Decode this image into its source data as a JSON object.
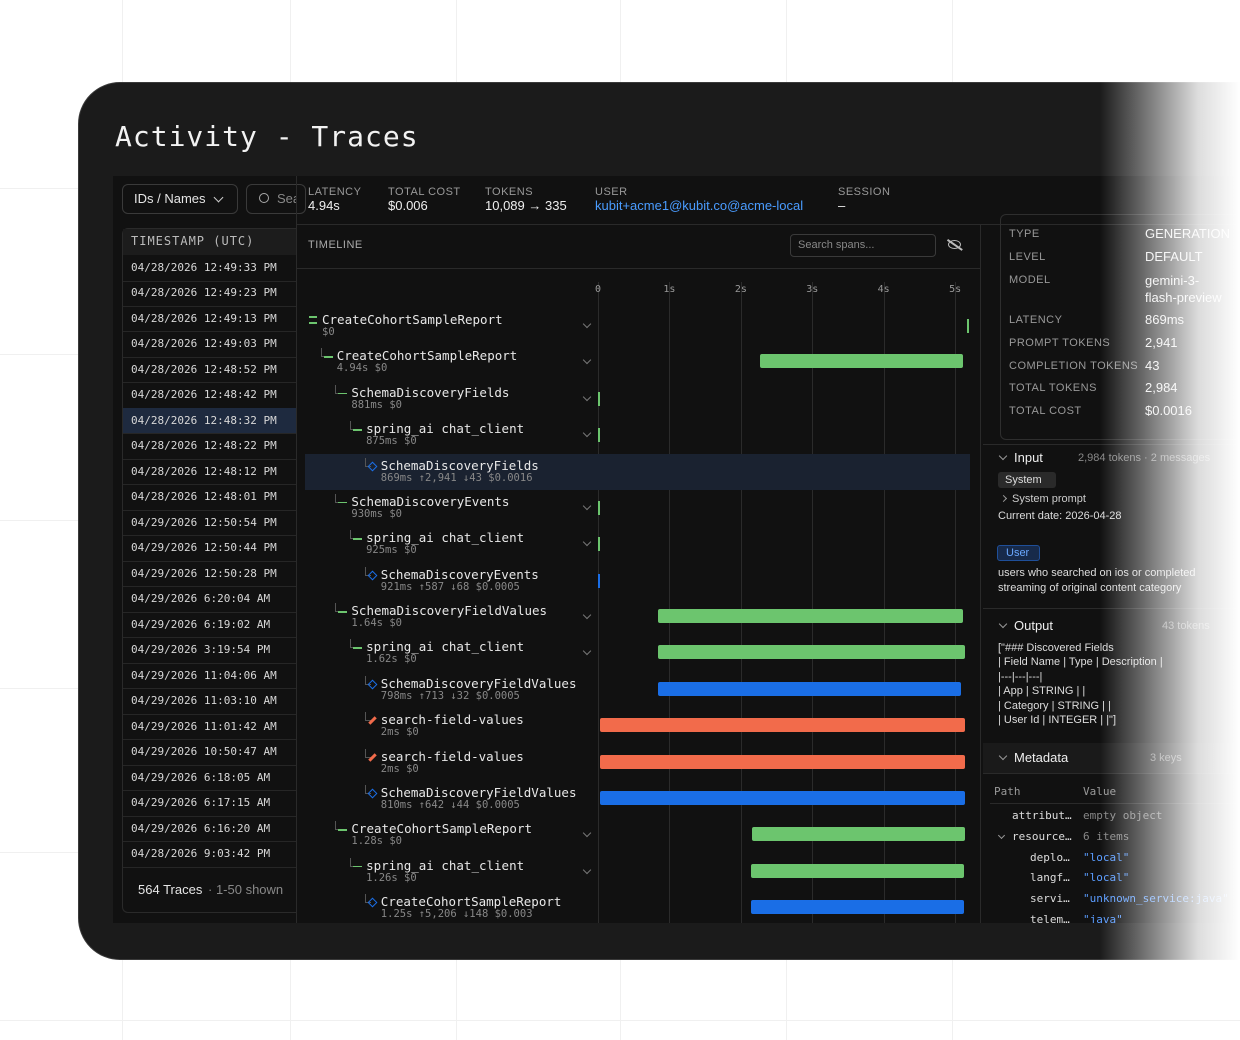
{
  "header": {
    "title": "Activity - Traces"
  },
  "filters": {
    "mode": "IDs / Names",
    "search": "Search"
  },
  "stats": [
    {
      "label": "LATENCY",
      "value": "4.94s"
    },
    {
      "label": "TOTAL COST",
      "value": "$0.006"
    },
    {
      "label": "TOKENS",
      "value": "10,089 → 335"
    },
    {
      "label": "USER",
      "value": "kubit+acme1@kubit.co@acme-local"
    },
    {
      "label": "SESSION",
      "value": "–"
    }
  ],
  "traces": {
    "header": "TIMESTAMP (UTC)",
    "selected": 6,
    "rows": [
      "04/28/2026 12:49:33 PM",
      "04/28/2026 12:49:23 PM",
      "04/28/2026 12:49:13 PM",
      "04/28/2026 12:49:03 PM",
      "04/28/2026 12:48:52 PM",
      "04/28/2026 12:48:42 PM",
      "04/28/2026 12:48:32 PM",
      "04/28/2026 12:48:22 PM",
      "04/28/2026 12:48:12 PM",
      "04/28/2026 12:48:01 PM",
      "04/29/2026 12:50:54 PM",
      "04/29/2026 12:50:44 PM",
      "04/29/2026 12:50:28 PM",
      "04/29/2026 6:20:04 AM",
      "04/29/2026 6:19:02 AM",
      "04/29/2026 3:19:54 PM",
      "04/29/2026 11:04:06 AM",
      "04/29/2026 11:03:10 AM",
      "04/29/2026 11:01:42 AM",
      "04/29/2026 10:50:47 AM",
      "04/29/2026 6:18:05 AM",
      "04/29/2026 6:17:15 AM",
      "04/29/2026 6:16:20 AM",
      "04/28/2026 9:03:42 PM"
    ],
    "count": "564 Traces",
    "shown": "· 1-50 shown"
  },
  "timeline": {
    "label": "TIMELINE",
    "search": "Search spans...",
    "xlim": [
      0,
      5.2
    ],
    "xticks": [
      0,
      {
        "value": 1,
        "label": "1s"
      },
      {
        "value": 2,
        "label": "2s"
      },
      {
        "value": 3,
        "label": "3s"
      },
      {
        "value": 4,
        "label": "4s"
      },
      {
        "value": 5,
        "label": "5s"
      }
    ],
    "colors": {
      "trace": "#6cc56e",
      "span": "#6cc56e",
      "generation": "#1a6ee6",
      "tool": "#f26b4b"
    },
    "selected": 4,
    "spans": [
      {
        "name": "CreateCohortSampleReport",
        "meta": "$0",
        "depth": 0,
        "kind": "trace",
        "start": 5.17,
        "end": 5.18
      },
      {
        "name": "CreateCohortSampleReport",
        "meta": "4.94s $0",
        "depth": 1,
        "kind": "span",
        "start": 2.27,
        "end": 5.11
      },
      {
        "name": "SchemaDiscoveryFields",
        "meta": "881ms $0",
        "depth": 2,
        "kind": "span",
        "start": 0,
        "end": 0.01
      },
      {
        "name": "spring_ai chat_client",
        "meta": "875ms $0",
        "depth": 3,
        "kind": "span",
        "start": 0,
        "end": 0.01
      },
      {
        "name": "SchemaDiscoveryFields",
        "meta": "869ms ↑2,941 ↓43 $0.0016",
        "depth": 4,
        "kind": "generation",
        "start": null,
        "end": null
      },
      {
        "name": "SchemaDiscoveryEvents",
        "meta": "930ms $0",
        "depth": 2,
        "kind": "span",
        "start": 0,
        "end": 0.01
      },
      {
        "name": "spring_ai chat_client",
        "meta": "925ms $0",
        "depth": 3,
        "kind": "span",
        "start": 0,
        "end": 0.01
      },
      {
        "name": "SchemaDiscoveryEvents",
        "meta": "921ms ↑587 ↓68 $0.0005",
        "depth": 4,
        "kind": "generation",
        "start": 0,
        "end": 0.01
      },
      {
        "name": "SchemaDiscoveryFieldValues",
        "meta": "1.64s $0",
        "depth": 2,
        "kind": "span",
        "start": 0.84,
        "end": 5.11
      },
      {
        "name": "spring_ai chat_client",
        "meta": "1.62s $0",
        "depth": 3,
        "kind": "span",
        "start": 0.84,
        "end": 5.14
      },
      {
        "name": "SchemaDiscoveryFieldValues",
        "meta": "798ms ↑713 ↓32 $0.0005",
        "depth": 4,
        "kind": "generation",
        "start": 0.84,
        "end": 5.08
      },
      {
        "name": "search-field-values",
        "meta": "2ms $0",
        "depth": 4,
        "kind": "tool",
        "start": 0.03,
        "end": 5.14
      },
      {
        "name": "search-field-values",
        "meta": "2ms $0",
        "depth": 4,
        "kind": "tool",
        "start": 0.03,
        "end": 5.14
      },
      {
        "name": "SchemaDiscoveryFieldValues",
        "meta": "810ms ↑642 ↓44 $0.0005",
        "depth": 4,
        "kind": "generation",
        "start": 0.03,
        "end": 5.14
      },
      {
        "name": "CreateCohortSampleReport",
        "meta": "1.28s $0",
        "depth": 2,
        "kind": "span",
        "start": 2.16,
        "end": 5.14
      },
      {
        "name": "spring_ai chat_client",
        "meta": "1.26s $0",
        "depth": 3,
        "kind": "span",
        "start": 2.14,
        "end": 5.13
      },
      {
        "name": "CreateCohortSampleReport",
        "meta": "1.25s ↑5,206 ↓148 $0.003",
        "depth": 4,
        "kind": "generation",
        "start": 2.14,
        "end": 5.12
      }
    ]
  },
  "details": {
    "fields": [
      {
        "label": "TYPE",
        "value": "GENERATION"
      },
      {
        "label": "LEVEL",
        "value": "DEFAULT"
      },
      {
        "label": "MODEL",
        "value": "gemini-3-flash-preview"
      },
      {
        "label": "LATENCY",
        "value": "869ms"
      },
      {
        "label": "PROMPT TOKENS",
        "value": "2,941"
      },
      {
        "label": "COMPLETION TOKENS",
        "value": "43"
      },
      {
        "label": "TOTAL TOKENS",
        "value": "2,984"
      },
      {
        "label": "TOTAL COST",
        "value": "$0.0016"
      }
    ],
    "input": {
      "title": "Input",
      "summary": "2,984 tokens · 2 messages",
      "system_role": "System",
      "system_prompt": "System prompt",
      "system_text": "Current date: 2026-04-28",
      "user_role": "User",
      "user_text": "users who searched on ios or completed streaming of original content category"
    },
    "output": {
      "title": "Output",
      "summary": "43 tokens",
      "lines": [
        "[\"### Discovered Fields",
        "| Field Name | Type | Description |",
        "|---|---|---|",
        "| App | STRING |  |",
        "| Category | STRING |  |",
        "| User Id | INTEGER |  |\"]"
      ]
    },
    "metadata": {
      "title": "Metadata",
      "summary": "3 keys",
      "columns": [
        "Path",
        "Value"
      ],
      "rows": [
        {
          "path": "attribut…",
          "value": "empty object",
          "depth": 0
        },
        {
          "path": "resource…",
          "value": "6 items",
          "depth": 0
        },
        {
          "path": "deplo…",
          "value": "\"local\"",
          "depth": 1
        },
        {
          "path": "langf…",
          "value": "\"local\"",
          "depth": 1
        },
        {
          "path": "servi…",
          "value": "\"unknown_service:java\"",
          "depth": 1
        },
        {
          "path": "telem…",
          "value": "\"java\"",
          "depth": 1
        }
      ]
    }
  }
}
